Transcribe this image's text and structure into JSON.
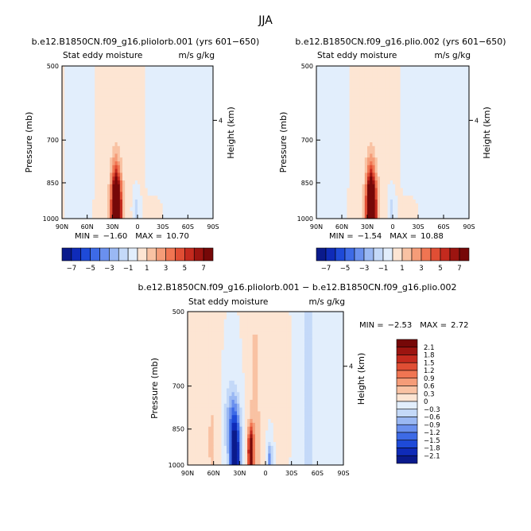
{
  "figure_title": "JJA",
  "chart_data": [
    {
      "type": "heatmap",
      "title": "b.e12.B1850CN.f09_g16.pliolorb.001 (yrs 601−650)",
      "subtitle_left": "Stat eddy moisture",
      "subtitle_right": "m/s g/kg",
      "xlabel": "",
      "ylabel": "Pressure (mb)",
      "right_label": "Height (km)",
      "x_ticks": [
        "90N",
        "60N",
        "30N",
        "0",
        "30S",
        "60S",
        "90S"
      ],
      "x_range": [
        90,
        -90
      ],
      "y_ticks": [
        "500",
        "700",
        "850",
        "1000"
      ],
      "y_range_mb": [
        500,
        1000
      ],
      "right_ticks": [
        "4"
      ],
      "min_label": "MIN =",
      "min_value": "−1.60",
      "max_label": "MAX =",
      "max_value": "10.70",
      "colorbar": {
        "orientation": "horizontal",
        "tick_labels": [
          "−7",
          "−5",
          "−3",
          "−1",
          "1",
          "3",
          "5",
          "7"
        ],
        "colors": [
          "#0a1a8c",
          "#0f2bb8",
          "#1e4ad8",
          "#3d6ae6",
          "#6a90ee",
          "#9ab8f3",
          "#c4d9f8",
          "#e2eefc",
          "#fde5d3",
          "#f9c2a3",
          "#f59c78",
          "#f07552",
          "#e04e34",
          "#c42a1e",
          "#9c1410",
          "#760808"
        ]
      },
      "features": [
        {
          "label": "upper-troposphere positive",
          "lat": 15,
          "p": 600,
          "value": 0.5
        },
        {
          "label": "subtropical maximum",
          "lat": 25,
          "p": 950,
          "value": 10.7
        },
        {
          "label": "equatorial negative",
          "lat": 2,
          "p": 960,
          "value": -1.6
        }
      ]
    },
    {
      "type": "heatmap",
      "title": "b.e12.B1850CN.f09_g16.plio.002 (yrs 601−650)",
      "subtitle_left": "Stat eddy moisture",
      "subtitle_right": "m/s g/kg",
      "xlabel": "",
      "ylabel": "Pressure (mb)",
      "right_label": "Height (km)",
      "x_ticks": [
        "90N",
        "60N",
        "30N",
        "0",
        "30S",
        "60S",
        "90S"
      ],
      "x_range": [
        90,
        -90
      ],
      "y_ticks": [
        "500",
        "700",
        "850",
        "1000"
      ],
      "y_range_mb": [
        500,
        1000
      ],
      "right_ticks": [
        "4"
      ],
      "min_label": "MIN =",
      "min_value": "−1.54",
      "max_label": "MAX =",
      "max_value": "10.88",
      "colorbar": {
        "orientation": "horizontal",
        "tick_labels": [
          "−7",
          "−5",
          "−3",
          "−1",
          "1",
          "3",
          "5",
          "7"
        ],
        "colors": [
          "#0a1a8c",
          "#0f2bb8",
          "#1e4ad8",
          "#3d6ae6",
          "#6a90ee",
          "#9ab8f3",
          "#c4d9f8",
          "#e2eefc",
          "#fde5d3",
          "#f9c2a3",
          "#f59c78",
          "#f07552",
          "#e04e34",
          "#c42a1e",
          "#9c1410",
          "#760808"
        ]
      },
      "features": [
        {
          "label": "upper-troposphere positive",
          "lat": 15,
          "p": 600,
          "value": 0.5
        },
        {
          "label": "subtropical maximum",
          "lat": 25,
          "p": 950,
          "value": 10.88
        },
        {
          "label": "equatorial negative",
          "lat": 2,
          "p": 960,
          "value": -1.54
        }
      ]
    },
    {
      "type": "heatmap",
      "title": "b.e12.B1850CN.f09_g16.pliolorb.001 − b.e12.B1850CN.f09_g16.plio.002",
      "subtitle_left": "Stat eddy moisture",
      "subtitle_right": "m/s g/kg",
      "xlabel": "",
      "ylabel": "Pressure (mb)",
      "right_label": "Height (km)",
      "x_ticks": [
        "90N",
        "60N",
        "30N",
        "0",
        "30S",
        "60S",
        "90S"
      ],
      "x_range": [
        90,
        -90
      ],
      "y_ticks": [
        "500",
        "700",
        "850",
        "1000"
      ],
      "y_range_mb": [
        500,
        1000
      ],
      "right_ticks": [
        "4"
      ],
      "min_label": "MIN =",
      "min_value": "−2.53",
      "max_label": "MAX =",
      "max_value": "2.72",
      "colorbar": {
        "orientation": "vertical",
        "tick_labels": [
          "2.1",
          "1.8",
          "1.5",
          "1.2",
          "0.9",
          "0.6",
          "0.3",
          "0",
          "−0.3",
          "−0.6",
          "−0.9",
          "−1.2",
          "−1.5",
          "−1.8",
          "−2.1"
        ],
        "colors": [
          "#760808",
          "#9c1410",
          "#c42a1e",
          "#e04e34",
          "#f07552",
          "#f59c78",
          "#f9c2a3",
          "#fde5d3",
          "#e2eefc",
          "#c4d9f8",
          "#9ab8f3",
          "#6a90ee",
          "#3d6ae6",
          "#1e4ad8",
          "#0f2bb8",
          "#0a1a8c"
        ]
      },
      "features": [
        {
          "label": "northern negative",
          "lat": 35,
          "p": 960,
          "value": -2.53
        },
        {
          "label": "subtropical positive",
          "lat": 17,
          "p": 940,
          "value": 2.72
        },
        {
          "label": "upper positive tongue",
          "lat": 12,
          "p": 700,
          "value": 0.6
        },
        {
          "label": "equatorial negative",
          "lat": -5,
          "p": 970,
          "value": -1.2
        }
      ]
    }
  ]
}
